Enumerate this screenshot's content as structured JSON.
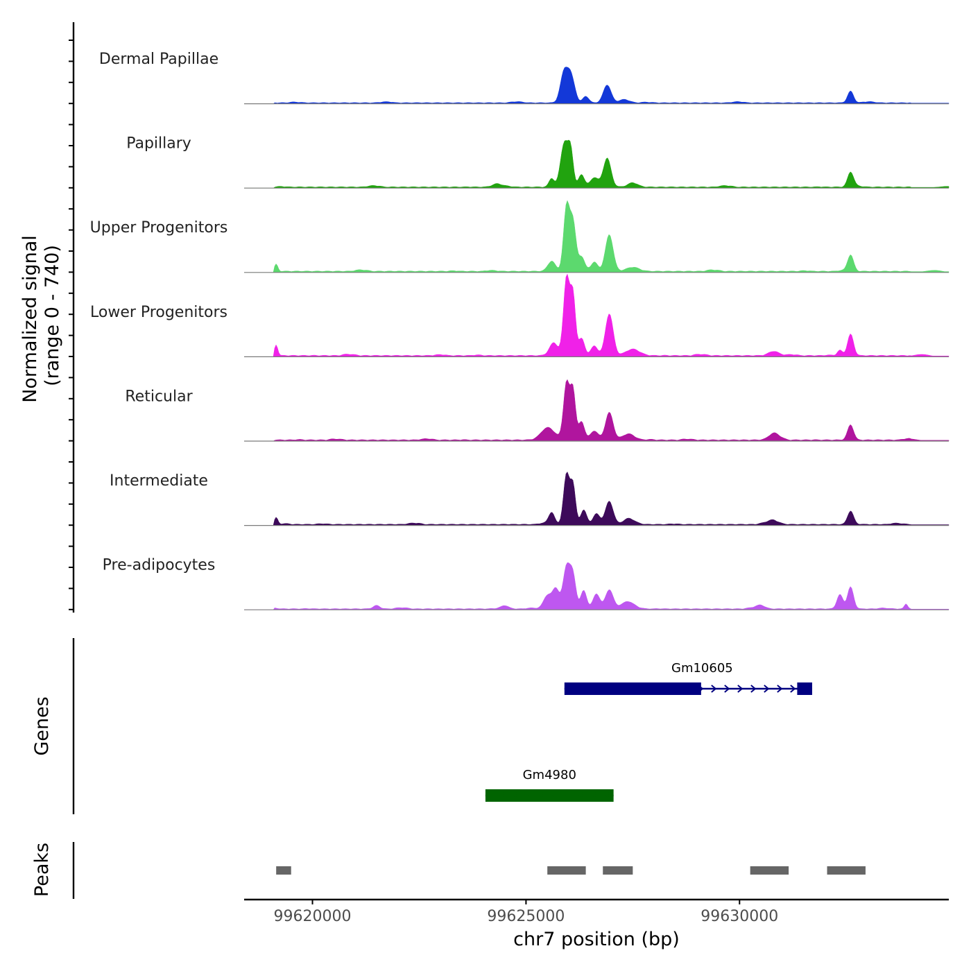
{
  "chart_data": {
    "type": "area",
    "title": "",
    "coverage": {
      "ylabel_line1": "Normalized signal",
      "ylabel_line2": "(range 0 - 740)",
      "ylim": [
        0,
        740
      ],
      "tracks": [
        {
          "name": "Dermal Papillae",
          "color": "#1338D8",
          "scale": 0.78,
          "peaks": [
            [
              99625900,
              390,
              90
            ],
            [
              99626050,
              260,
              70
            ],
            [
              99626150,
              80,
              60
            ],
            [
              99626400,
              80,
              70
            ],
            [
              99626900,
              210,
              90
            ],
            [
              99627300,
              40,
              120
            ],
            [
              99632600,
              140,
              70
            ]
          ]
        },
        {
          "name": "Papillary",
          "color": "#21A30F",
          "scale": 0.9,
          "peaks": [
            [
              99625600,
              90,
              60
            ],
            [
              99625900,
              460,
              90
            ],
            [
              99626050,
              330,
              60
            ],
            [
              99626300,
              130,
              70
            ],
            [
              99626600,
              90,
              90
            ],
            [
              99626900,
              300,
              90
            ],
            [
              99627500,
              40,
              120
            ],
            [
              99624300,
              30,
              100
            ],
            [
              99632600,
              150,
              70
            ]
          ]
        },
        {
          "name": "Upper Progenitors",
          "color": "#5CD96E",
          "scale": 0.95,
          "peaks": [
            [
              99625600,
              100,
              90
            ],
            [
              99625950,
              630,
              70
            ],
            [
              99626100,
              470,
              70
            ],
            [
              99626300,
              130,
              70
            ],
            [
              99626600,
              90,
              80
            ],
            [
              99626950,
              360,
              90
            ],
            [
              99627500,
              40,
              150
            ],
            [
              99619150,
              70,
              40
            ],
            [
              99632600,
              160,
              70
            ]
          ]
        },
        {
          "name": "Lower Progenitors",
          "color": "#F021E8",
          "scale": 1.0,
          "peaks": [
            [
              99625650,
              120,
              100
            ],
            [
              99625950,
              720,
              70
            ],
            [
              99626100,
              540,
              60
            ],
            [
              99626300,
              160,
              70
            ],
            [
              99626600,
              90,
              80
            ],
            [
              99626950,
              390,
              90
            ],
            [
              99627500,
              60,
              160
            ],
            [
              99619150,
              100,
              40
            ],
            [
              99630800,
              40,
              120
            ],
            [
              99632350,
              50,
              60
            ],
            [
              99632600,
              200,
              70
            ]
          ]
        },
        {
          "name": "Reticular",
          "color": "#B0159E",
          "scale": 0.95,
          "peaks": [
            [
              99625500,
              120,
              150
            ],
            [
              99625950,
              560,
              70
            ],
            [
              99626100,
              480,
              60
            ],
            [
              99626300,
              180,
              70
            ],
            [
              99626600,
              90,
              90
            ],
            [
              99626950,
              270,
              90
            ],
            [
              99627400,
              60,
              140
            ],
            [
              99630800,
              60,
              120
            ],
            [
              99632600,
              150,
              70
            ]
          ]
        },
        {
          "name": "Intermediate",
          "color": "#3D0A5A",
          "scale": 0.9,
          "peaks": [
            [
              99625600,
              120,
              70
            ],
            [
              99625950,
              520,
              70
            ],
            [
              99626100,
              400,
              60
            ],
            [
              99626350,
              150,
              70
            ],
            [
              99626650,
              110,
              80
            ],
            [
              99626950,
              240,
              90
            ],
            [
              99627400,
              60,
              120
            ],
            [
              99619150,
              70,
              40
            ],
            [
              99630800,
              40,
              120
            ],
            [
              99632600,
              140,
              70
            ]
          ]
        },
        {
          "name": "Pre-adipocytes",
          "color": "#BE57F0",
          "scale": 0.78,
          "peaks": [
            [
              99625500,
              160,
              90
            ],
            [
              99625700,
              240,
              80
            ],
            [
              99625950,
              500,
              80
            ],
            [
              99626100,
              380,
              70
            ],
            [
              99626350,
              220,
              70
            ],
            [
              99626650,
              180,
              80
            ],
            [
              99626950,
              230,
              90
            ],
            [
              99627400,
              80,
              150
            ],
            [
              99621500,
              40,
              80
            ],
            [
              99624500,
              40,
              90
            ],
            [
              99630500,
              40,
              100
            ],
            [
              99632350,
              170,
              70
            ],
            [
              99632600,
              260,
              70
            ],
            [
              99633900,
              60,
              40
            ]
          ]
        }
      ]
    },
    "genes": {
      "ylabel": "Genes",
      "items": [
        {
          "name": "Gm10605",
          "color": "#000080",
          "start": 99625900,
          "end": 99631700,
          "strand": "+",
          "thick": [
            [
              99625900,
              99629100
            ],
            [
              99631350,
              99631700
            ]
          ]
        },
        {
          "name": "Gm4980",
          "color": "#006400",
          "start": 99624050,
          "end": 99627050,
          "strand": "-",
          "thick": [
            [
              99624050,
              99627050
            ]
          ]
        }
      ]
    },
    "peaks_track": {
      "ylabel": "Peaks",
      "color": "#666666",
      "regions": [
        [
          99619150,
          99619500
        ],
        [
          99625500,
          99626400
        ],
        [
          99626800,
          99627500
        ],
        [
          99630250,
          99631150
        ],
        [
          99632050,
          99632950
        ]
      ]
    },
    "xaxis": {
      "label": "chr7 position (bp)",
      "xlim": [
        99618400,
        99634900
      ],
      "ticks": [
        99620000,
        99625000,
        99630000
      ],
      "tick_labels": [
        "99620000",
        "99625000",
        "99630000"
      ]
    }
  }
}
